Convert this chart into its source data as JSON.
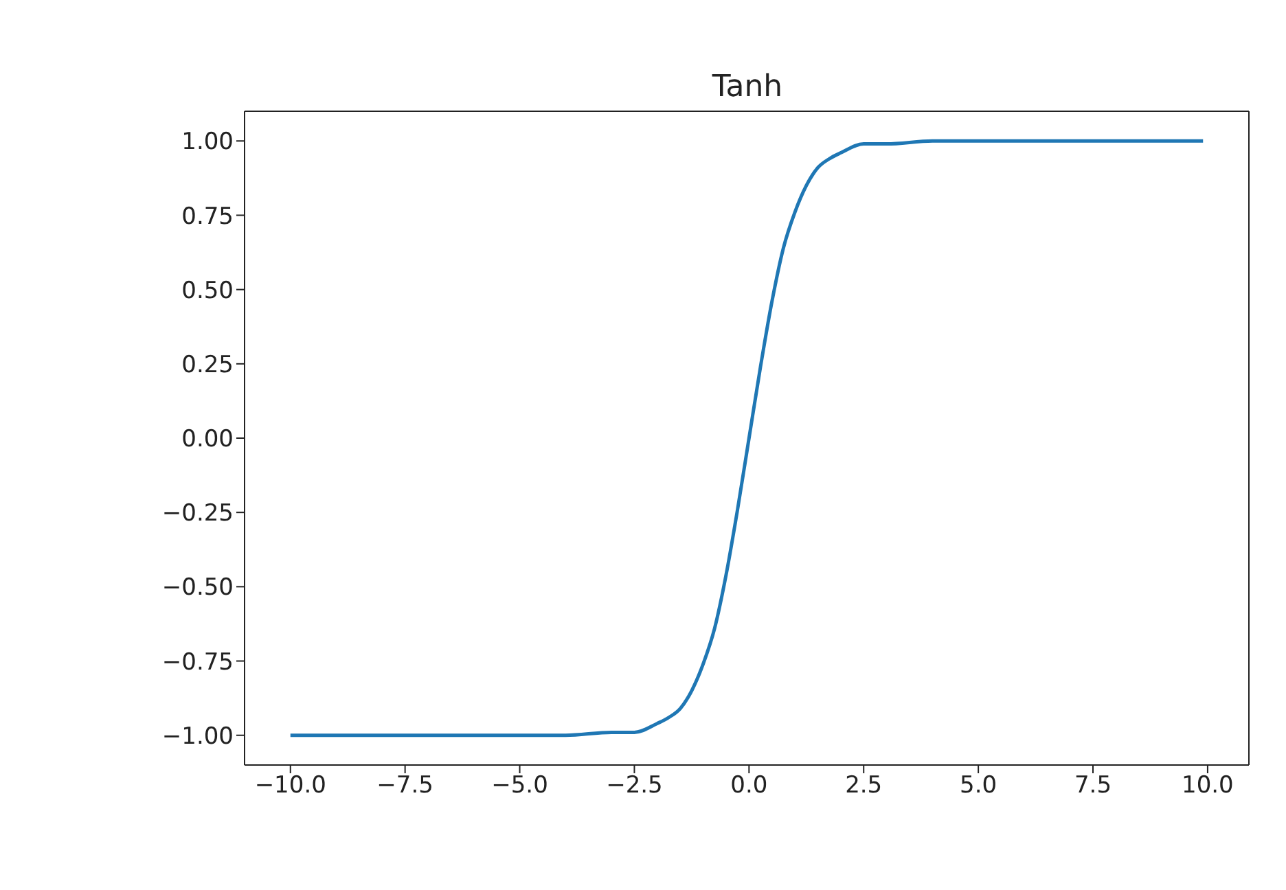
{
  "chart_data": {
    "type": "line",
    "title": "Tanh",
    "x": [
      -10,
      -4,
      -3,
      -2.5,
      -2,
      -1.75,
      -1.5,
      -1.25,
      -1,
      -0.75,
      -0.5,
      -0.25,
      0,
      0.25,
      0.5,
      0.75,
      1,
      1.25,
      1.5,
      1.75,
      2,
      2.5,
      3,
      4,
      9.9
    ],
    "series": [
      {
        "color": "#1f77b4",
        "values": [
          -1,
          -1,
          -0.99,
          -0.99,
          -0.96,
          -0.94,
          -0.91,
          -0.85,
          -0.76,
          -0.64,
          -0.46,
          -0.24,
          0,
          0.24,
          0.46,
          0.64,
          0.76,
          0.85,
          0.91,
          0.94,
          0.96,
          0.99,
          0.99,
          1,
          1
        ]
      }
    ],
    "xlim": [
      -11,
      10.9
    ],
    "ylim": [
      -1.1,
      1.1
    ],
    "xticks": [
      {
        "value": -10,
        "label": "−10.0"
      },
      {
        "value": -7.5,
        "label": "−7.5"
      },
      {
        "value": -5,
        "label": "−5.0"
      },
      {
        "value": -2.5,
        "label": "−2.5"
      },
      {
        "value": 0,
        "label": "0.0"
      },
      {
        "value": 2.5,
        "label": "2.5"
      },
      {
        "value": 5,
        "label": "5.0"
      },
      {
        "value": 7.5,
        "label": "7.5"
      },
      {
        "value": 10,
        "label": "10.0"
      }
    ],
    "yticks": [
      {
        "value": -1,
        "label": "−1.00"
      },
      {
        "value": -0.75,
        "label": "−0.75"
      },
      {
        "value": -0.5,
        "label": "−0.50"
      },
      {
        "value": -0.25,
        "label": "−0.25"
      },
      {
        "value": 0,
        "label": "0.00"
      },
      {
        "value": 0.25,
        "label": "0.25"
      },
      {
        "value": 0.5,
        "label": "0.50"
      },
      {
        "value": 0.75,
        "label": "0.75"
      },
      {
        "value": 1,
        "label": "1.00"
      }
    ],
    "grid": false,
    "legend": false,
    "marker": "none",
    "line_style": "solid"
  }
}
